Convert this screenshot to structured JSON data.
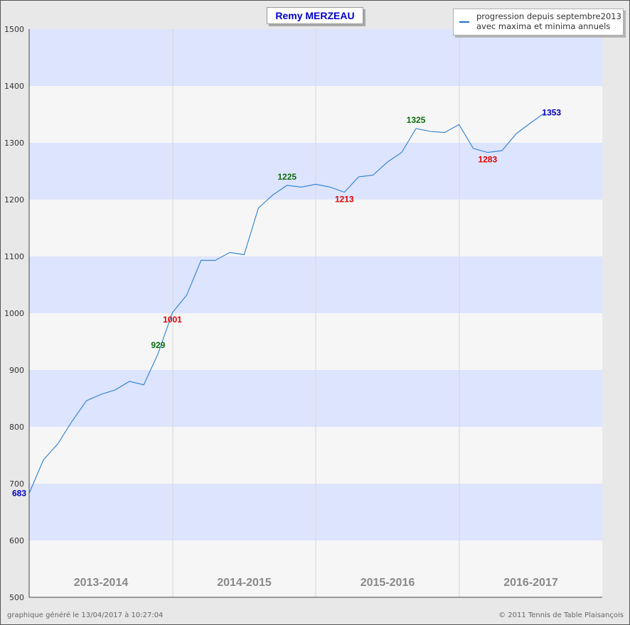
{
  "title": "Remy MERZEAU",
  "legend": {
    "line1": "progression depuis septembre2013",
    "line2": "avec maxima et minima annuels",
    "color": "#1f6fc5"
  },
  "footer": {
    "generated": "graphique généré le 13/04/2017 à 10:27:04",
    "copyright": "© 2011 Tennis de Table Plaisançois"
  },
  "colors": {
    "band_blue": "#dde4fd",
    "band_gray": "#f6f6f6",
    "line": "#2a7fd0",
    "max": "#0b6b0b",
    "min": "#dd0000",
    "endpoint": "#0000bb",
    "season_label": "#888888"
  },
  "chart_data": {
    "type": "line",
    "ylim": [
      500,
      1500
    ],
    "yticks": [
      500,
      600,
      700,
      800,
      900,
      1000,
      1100,
      1200,
      1300,
      1400,
      1500
    ],
    "grid": true,
    "legend_position": "top-right",
    "seasons": [
      "2013-2014",
      "2014-2015",
      "2015-2016",
      "2016-2017"
    ],
    "series": [
      {
        "name": "progression depuis septembre2013",
        "values": [
          683,
          742,
          770,
          810,
          846,
          857,
          865,
          880,
          874,
          929,
          1001,
          1032,
          1093,
          1093,
          1107,
          1103,
          1185,
          1208,
          1225,
          1222,
          1227,
          1222,
          1213,
          1240,
          1243,
          1266,
          1283,
          1325,
          1320,
          1318,
          1332,
          1290,
          1283,
          1286,
          1316,
          1335,
          1353
        ]
      }
    ],
    "annotations": [
      {
        "index": 0,
        "value": 683,
        "label": "683",
        "kind": "endpoint"
      },
      {
        "index": 9,
        "value": 929,
        "label": "929",
        "kind": "max"
      },
      {
        "index": 10,
        "value": 1001,
        "label": "1001",
        "kind": "min"
      },
      {
        "index": 18,
        "value": 1225,
        "label": "1225",
        "kind": "max"
      },
      {
        "index": 22,
        "value": 1213,
        "label": "1213",
        "kind": "min"
      },
      {
        "index": 27,
        "value": 1325,
        "label": "1325",
        "kind": "max"
      },
      {
        "index": 32,
        "value": 1283,
        "label": "1283",
        "kind": "min"
      },
      {
        "index": 36,
        "value": 1353,
        "label": "1353",
        "kind": "endpoint"
      }
    ]
  }
}
